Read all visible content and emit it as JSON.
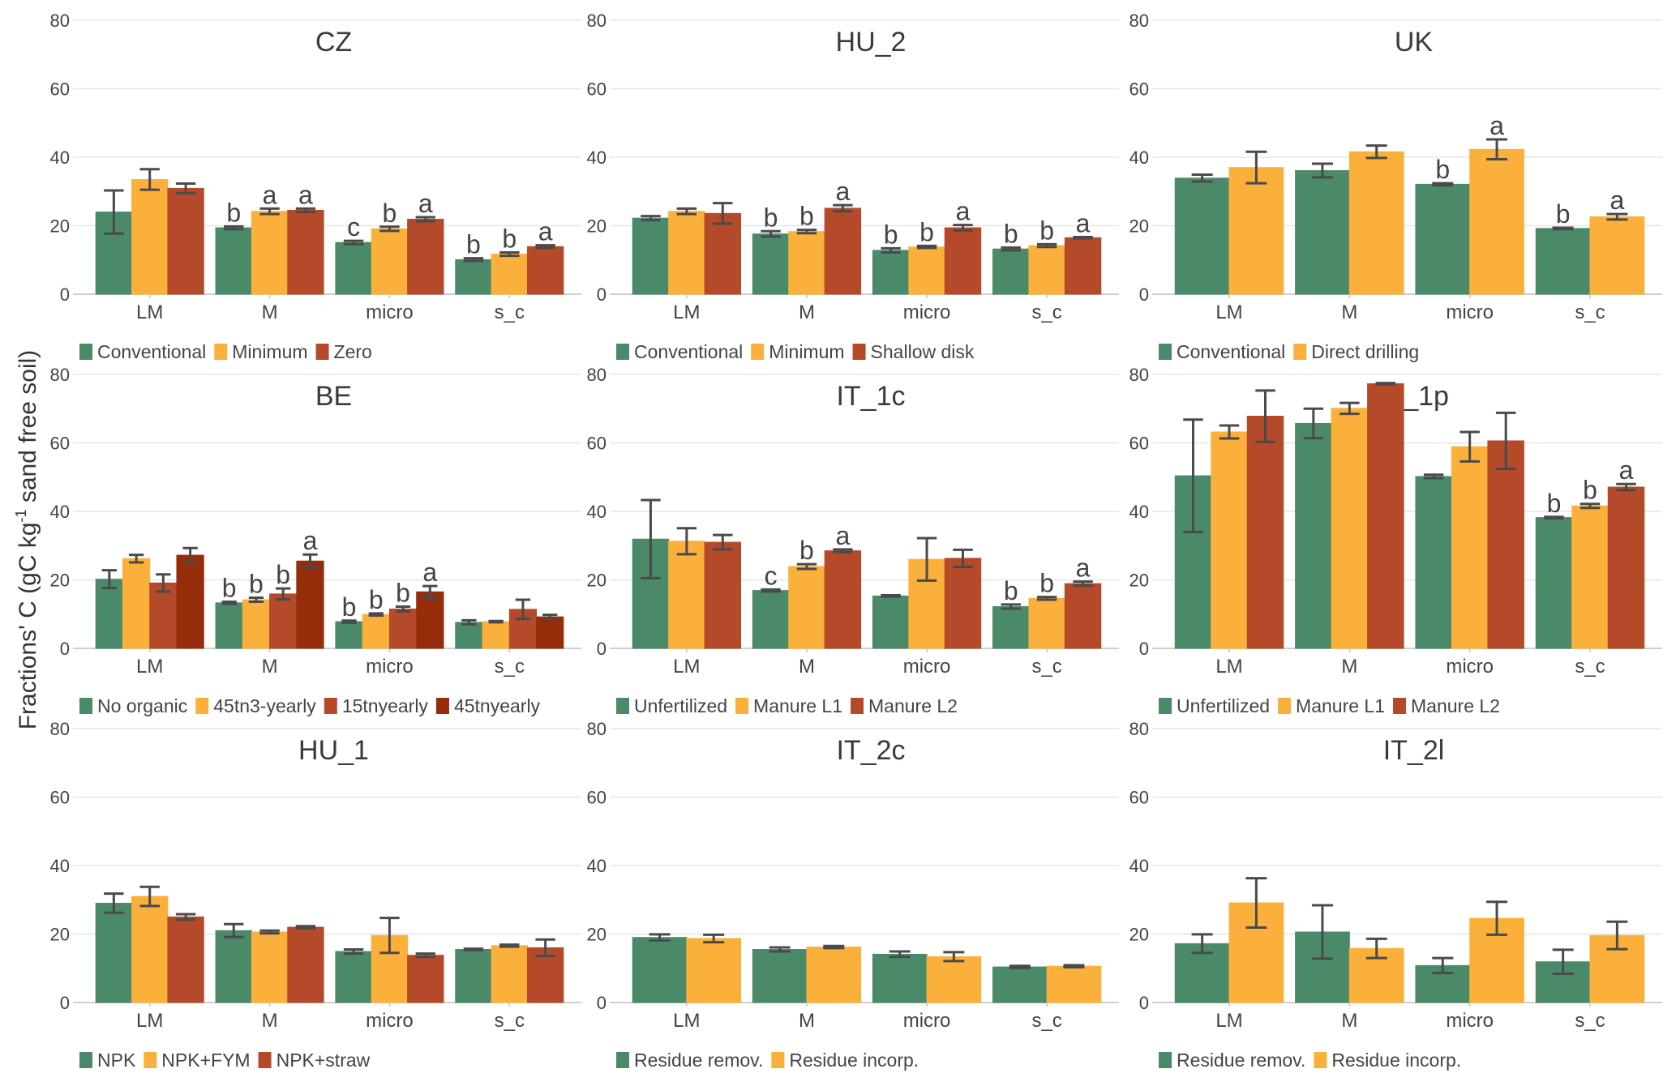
{
  "chart_data": {
    "type": "bar",
    "ylabel": "Fractions' C (gC kg-1 sand free soil)",
    "ylabel_parts": {
      "pre": "Fractions' C (gC kg",
      "sup": "-1",
      "post": " sand free soil)"
    },
    "ylim": [
      0,
      80
    ],
    "yticks": [
      0,
      20,
      40,
      60,
      80
    ],
    "grid": true,
    "legend_position": "bottom",
    "categories": [
      "LM",
      "M",
      "micro",
      "s_c"
    ],
    "colors": [
      "#4a8a69",
      "#fbb03b",
      "#b54a2a",
      "#952d0b"
    ],
    "panels": [
      {
        "title": "CZ",
        "series": [
          {
            "name": "Conventional",
            "values": [
              24.0,
              19.4,
              15.1,
              10.1
            ],
            "errors": [
              6.3,
              0.4,
              0.5,
              0.4
            ],
            "letters": [
              "",
              "b",
              "c",
              "b"
            ]
          },
          {
            "name": "Minimum",
            "values": [
              33.5,
              24.2,
              19.1,
              11.7
            ],
            "errors": [
              3.0,
              0.8,
              0.6,
              0.5
            ],
            "letters": [
              "",
              "a",
              "b",
              "b"
            ]
          },
          {
            "name": "Zero",
            "values": [
              30.9,
              24.5,
              21.9,
              13.9
            ],
            "errors": [
              1.4,
              0.5,
              0.6,
              0.4
            ],
            "letters": [
              "",
              "a",
              "a",
              "a"
            ]
          }
        ]
      },
      {
        "title": "HU_2",
        "series": [
          {
            "name": "Conventional",
            "values": [
              22.2,
              17.6,
              12.8,
              13.2
            ],
            "errors": [
              0.6,
              0.8,
              0.6,
              0.4
            ],
            "letters": [
              "",
              "b",
              "b",
              "b"
            ]
          },
          {
            "name": "Minimum",
            "values": [
              24.2,
              18.3,
              13.8,
              14.2
            ],
            "errors": [
              0.8,
              0.5,
              0.3,
              0.4
            ],
            "letters": [
              "",
              "b",
              "b",
              "b"
            ]
          },
          {
            "name": "Shallow disk",
            "values": [
              23.6,
              25.1,
              19.4,
              16.5
            ],
            "errors": [
              3.0,
              0.9,
              0.8,
              0.2
            ],
            "letters": [
              "",
              "a",
              "a",
              "a"
            ]
          }
        ]
      },
      {
        "title": "UK",
        "series": [
          {
            "name": "Conventional",
            "values": [
              33.9,
              36.1,
              32.1,
              19.2
            ],
            "errors": [
              1.0,
              2.0,
              0.3,
              0.2
            ],
            "letters": [
              "",
              "",
              "b",
              "b"
            ]
          },
          {
            "name": "Direct drilling",
            "values": [
              37.0,
              41.6,
              42.3,
              22.6
            ],
            "errors": [
              4.6,
              1.8,
              2.9,
              0.8
            ],
            "letters": [
              "",
              "",
              "a",
              "a"
            ]
          }
        ]
      },
      {
        "title": "BE",
        "series": [
          {
            "name": "No organic",
            "values": [
              20.2,
              13.3,
              7.8,
              7.6
            ],
            "errors": [
              2.6,
              0.3,
              0.3,
              0.6
            ],
            "letters": [
              "",
              "b",
              "b",
              ""
            ]
          },
          {
            "name": "45tn3-yearly",
            "values": [
              26.2,
              14.2,
              9.9,
              7.8
            ],
            "errors": [
              1.1,
              0.6,
              0.3,
              0.2
            ],
            "letters": [
              "",
              "b",
              "b",
              ""
            ]
          },
          {
            "name": "15tnyearly",
            "values": [
              19.1,
              15.9,
              11.5,
              11.4
            ],
            "errors": [
              2.5,
              1.6,
              0.7,
              2.8
            ],
            "letters": [
              "",
              "b",
              "b",
              ""
            ]
          },
          {
            "name": "45tnyearly",
            "values": [
              27.2,
              25.5,
              16.5,
              9.2
            ],
            "errors": [
              2.1,
              1.9,
              1.7,
              0.6
            ],
            "letters": [
              "",
              "a",
              "a",
              ""
            ]
          }
        ]
      },
      {
        "title": "IT_1c",
        "series": [
          {
            "name": "Unfertilized",
            "values": [
              31.9,
              16.9,
              15.3,
              12.2
            ],
            "errors": [
              11.4,
              0.3,
              0.2,
              0.6
            ],
            "letters": [
              "",
              "c",
              "",
              "b"
            ]
          },
          {
            "name": "Manure L1",
            "values": [
              31.3,
              23.9,
              26.0,
              14.6
            ],
            "errors": [
              3.8,
              0.7,
              6.2,
              0.4
            ],
            "letters": [
              "",
              "b",
              "",
              "b"
            ]
          },
          {
            "name": "Manure L2",
            "values": [
              31.0,
              28.5,
              26.3,
              18.9
            ],
            "errors": [
              2.1,
              0.4,
              2.5,
              0.6
            ],
            "letters": [
              "",
              "a",
              "",
              "a"
            ]
          }
        ]
      },
      {
        "title": "IT_1p",
        "series": [
          {
            "name": "Unfertilized",
            "values": [
              50.4,
              65.7,
              50.2,
              38.2
            ],
            "errors": [
              16.4,
              4.3,
              0.5,
              0.2
            ],
            "letters": [
              "",
              "",
              "",
              "b"
            ]
          },
          {
            "name": "Manure L1",
            "values": [
              63.2,
              70.1,
              58.9,
              41.6
            ],
            "errors": [
              1.9,
              1.6,
              4.3,
              0.6
            ],
            "letters": [
              "",
              "",
              "",
              "b"
            ]
          },
          {
            "name": "Manure L2",
            "values": [
              67.8,
              77.3,
              60.6,
              47.1
            ],
            "errors": [
              7.5,
              0.2,
              8.2,
              0.9
            ],
            "letters": [
              "",
              "",
              "",
              "a"
            ]
          }
        ]
      },
      {
        "title": "HU_1",
        "series": [
          {
            "name": "NPK",
            "values": [
              29.0,
              21.0,
              14.9,
              15.5
            ],
            "errors": [
              2.8,
              1.9,
              0.6,
              0.2
            ],
            "letters": [
              "",
              "",
              "",
              ""
            ]
          },
          {
            "name": "NPK+FYM",
            "values": [
              31.0,
              20.6,
              19.6,
              16.6
            ],
            "errors": [
              2.8,
              0.4,
              5.1,
              0.3
            ],
            "letters": [
              "",
              "",
              "",
              ""
            ]
          },
          {
            "name": "NPK+straw",
            "values": [
              25.0,
              22.0,
              13.8,
              16.0
            ],
            "errors": [
              0.8,
              0.3,
              0.5,
              2.4
            ],
            "letters": [
              "",
              "",
              "",
              ""
            ]
          }
        ]
      },
      {
        "title": "IT_2c",
        "series": [
          {
            "name": "Residue remov.",
            "values": [
              19.0,
              15.5,
              14.1,
              10.4
            ],
            "errors": [
              0.9,
              0.6,
              0.8,
              0.3
            ],
            "letters": [
              "",
              "",
              "",
              ""
            ]
          },
          {
            "name": "Residue incorp.",
            "values": [
              18.7,
              16.2,
              13.4,
              10.6
            ],
            "errors": [
              1.1,
              0.3,
              1.3,
              0.3
            ],
            "letters": [
              "",
              "",
              "",
              ""
            ]
          }
        ]
      },
      {
        "title": "IT_2l",
        "series": [
          {
            "name": "Residue remov.",
            "values": [
              17.2,
              20.6,
              10.8,
              11.9
            ],
            "errors": [
              2.7,
              7.8,
              2.2,
              3.5
            ],
            "letters": [
              "",
              "",
              "",
              ""
            ]
          },
          {
            "name": "Residue incorp.",
            "values": [
              29.1,
              15.8,
              24.6,
              19.6
            ],
            "errors": [
              7.2,
              2.8,
              4.8,
              4.0
            ],
            "letters": [
              "",
              "",
              "",
              ""
            ]
          }
        ]
      }
    ]
  }
}
